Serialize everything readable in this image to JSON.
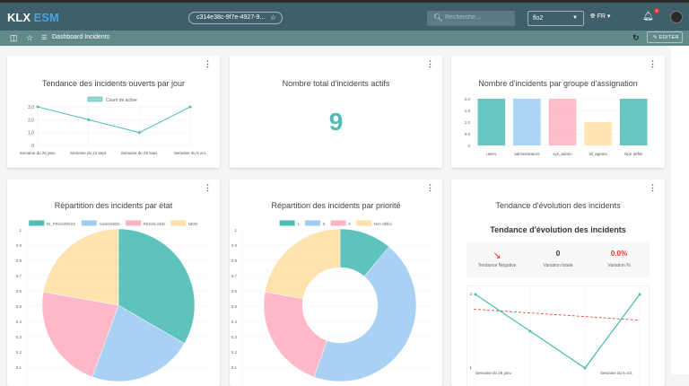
{
  "header": {
    "logo_main": "KLX",
    "logo_accent": "ESM",
    "record_id": "c314e38c-9f7e-4927-9...",
    "search_placeholder": "Recherche...",
    "tenant": "flo2",
    "language": "FR",
    "notification_count": "4"
  },
  "toolbar": {
    "breadcrumb": "Dashboard Incidents",
    "edit_label": "EDITER"
  },
  "colors": {
    "teal": "#4dbdb6",
    "blue": "#9fcdf2",
    "pink": "#ffb1c1",
    "yellow": "#ffe0a6",
    "header": "#3f5f6b",
    "subbar": "#628a88",
    "trend": "#e53935"
  },
  "cards": {
    "line": {
      "title": "Tendance des incidents ouverts par jour"
    },
    "total": {
      "title": "Nombre total d'incidents actifs",
      "value": "9"
    },
    "bars": {
      "title": "Nombre d'incidents par groupe d'assignation"
    },
    "pie": {
      "title": "Répartition des incidents par état"
    },
    "donut": {
      "title": "Répartition des incidents par priorité"
    },
    "trend": {
      "title": "Tendance d'évolution des incidents",
      "subtitle": "Tendance d'évolution des incidents",
      "direction_label": "Tendance Négative",
      "variation_total": "0",
      "variation_total_label": "Variation totale",
      "variation_pct": "0.0%",
      "variation_pct_label": "Variation %"
    }
  },
  "chart_data": [
    {
      "type": "line",
      "categories": [
        "Semaine du 26 janv.",
        "Semaine du 21 sept.",
        "Semaine du 28 sept.",
        "Semaine du 5 oct."
      ],
      "series": [
        {
          "name": "Count de active",
          "values": [
            3,
            2,
            1,
            3
          ]
        }
      ],
      "ylim": [
        0,
        3
      ],
      "yticks": [
        "0",
        "1,0",
        "2,0",
        "3,0"
      ],
      "grid": true,
      "legend": "top"
    },
    {
      "type": "bar",
      "categories": [
        "users",
        "administrators",
        "sys_admin",
        "itil_agents",
        "Non défini"
      ],
      "values": [
        2,
        2,
        2,
        1,
        2
      ],
      "ylim": [
        0,
        2
      ],
      "yticks": [
        "0",
        "0.5",
        "1.0",
        "1.5",
        "2.0"
      ],
      "grid": true
    },
    {
      "type": "pie",
      "categories": [
        "IN_PROGRESS",
        "ASSIGNED",
        "RESOLVED",
        "NEW"
      ],
      "values": [
        3,
        2,
        2,
        2
      ],
      "yticks": [
        "0.1",
        "0.2",
        "0.3",
        "0.4",
        "0.5",
        "0.6",
        "0.7",
        "0.8",
        "0.9",
        "1"
      ],
      "legend": "top"
    },
    {
      "type": "pie",
      "variant": "doughnut",
      "categories": [
        "1",
        "3",
        "4",
        "Non défini"
      ],
      "values": [
        1,
        4,
        2,
        2
      ],
      "yticks": [
        "0.1",
        "0.2",
        "0.3",
        "0.4",
        "0.5",
        "0.6",
        "0.7",
        "0.8",
        "0.9",
        "1"
      ],
      "legend": "top"
    },
    {
      "type": "line",
      "categories": [
        "Semaine du 26 janv.",
        "Semaine du 21 sept.",
        "Semaine du 28 sept.",
        "Semaine du 5 oct."
      ],
      "x_tick_labels": [
        "Semaine du 26 janv.",
        "Semaine du 5 oct."
      ],
      "values": [
        3,
        2,
        1,
        3
      ],
      "trendline": [
        2.6,
        2.3
      ],
      "yticks": [
        "1",
        "3"
      ],
      "ylim": [
        1,
        3
      ]
    }
  ]
}
